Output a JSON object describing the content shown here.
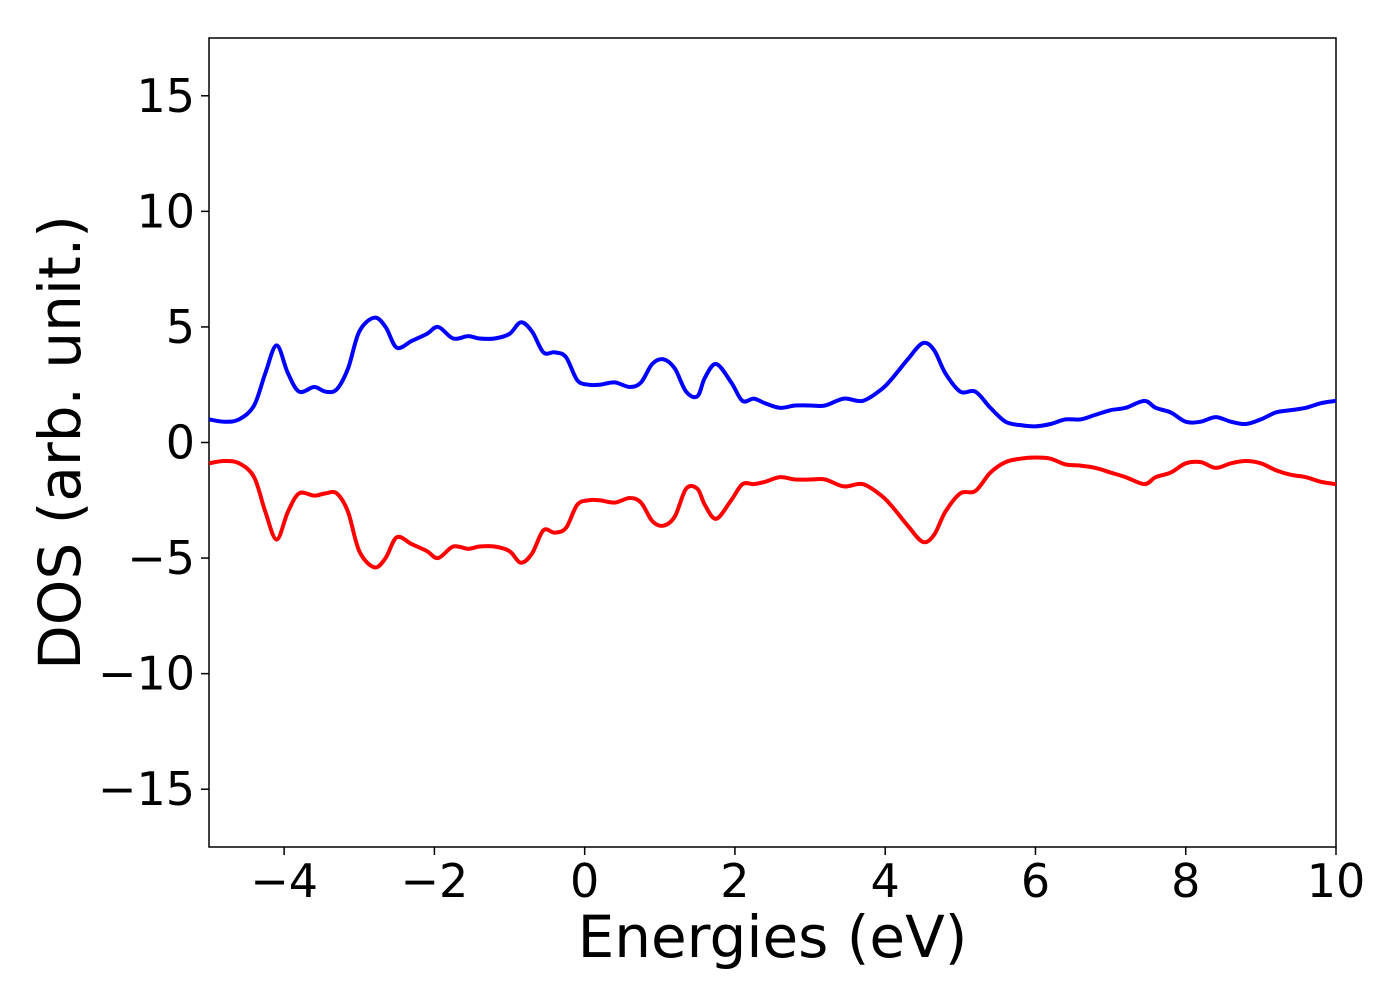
{
  "chart_data": {
    "type": "line",
    "title": "",
    "xlabel": "Energies (eV)",
    "ylabel": "DOS (arb. unit.)",
    "xlim": [
      -5,
      10
    ],
    "ylim": [
      -17.5,
      17.5
    ],
    "grid": false,
    "legend": "none",
    "x_ticks": [
      -4,
      -2,
      0,
      2,
      4,
      6,
      8,
      10
    ],
    "x_tick_labels": [
      "−4",
      "−2",
      "0",
      "2",
      "4",
      "6",
      "8",
      "10"
    ],
    "y_ticks": [
      -15,
      -10,
      -5,
      0,
      5,
      10,
      15
    ],
    "y_tick_labels": [
      "−15",
      "−10",
      "−5",
      "0",
      "5",
      "10",
      "15"
    ],
    "x": [
      -5.0,
      -4.8,
      -4.6,
      -4.4,
      -4.25,
      -4.1,
      -3.95,
      -3.8,
      -3.6,
      -3.45,
      -3.3,
      -3.15,
      -3.0,
      -2.8,
      -2.65,
      -2.5,
      -2.3,
      -2.1,
      -1.95,
      -1.75,
      -1.55,
      -1.4,
      -1.2,
      -1.0,
      -0.85,
      -0.7,
      -0.55,
      -0.4,
      -0.25,
      -0.1,
      0.05,
      0.2,
      0.4,
      0.6,
      0.75,
      0.9,
      1.05,
      1.2,
      1.35,
      1.5,
      1.6,
      1.75,
      1.95,
      2.1,
      2.25,
      2.4,
      2.6,
      2.8,
      3.0,
      3.2,
      3.45,
      3.7,
      3.95,
      4.1,
      4.3,
      4.5,
      4.65,
      4.8,
      5.0,
      5.2,
      5.4,
      5.6,
      5.8,
      6.0,
      6.2,
      6.4,
      6.6,
      6.8,
      7.0,
      7.2,
      7.45,
      7.6,
      7.8,
      8.0,
      8.2,
      8.4,
      8.6,
      8.8,
      9.0,
      9.2,
      9.4,
      9.6,
      9.8,
      10.0
    ],
    "series": [
      {
        "color": "#0000ff",
        "values": [
          1.0,
          0.9,
          1.0,
          1.6,
          3.0,
          4.2,
          3.0,
          2.2,
          2.4,
          2.2,
          2.3,
          3.2,
          4.8,
          5.4,
          5.0,
          4.1,
          4.4,
          4.7,
          5.0,
          4.5,
          4.6,
          4.5,
          4.5,
          4.7,
          5.2,
          4.8,
          3.9,
          3.9,
          3.7,
          2.7,
          2.5,
          2.5,
          2.6,
          2.4,
          2.6,
          3.4,
          3.6,
          3.2,
          2.2,
          2.0,
          2.8,
          3.4,
          2.6,
          1.8,
          1.9,
          1.7,
          1.5,
          1.6,
          1.6,
          1.6,
          1.9,
          1.8,
          2.3,
          2.8,
          3.6,
          4.3,
          4.0,
          3.0,
          2.2,
          2.2,
          1.5,
          0.9,
          0.75,
          0.7,
          0.8,
          1.0,
          1.0,
          1.2,
          1.4,
          1.5,
          1.8,
          1.5,
          1.3,
          0.9,
          0.9,
          1.1,
          0.9,
          0.8,
          1.0,
          1.3,
          1.4,
          1.5,
          1.7,
          1.8
        ]
      },
      {
        "color": "#ff0000",
        "values": [
          -0.9,
          -0.8,
          -0.9,
          -1.5,
          -3.0,
          -4.2,
          -3.0,
          -2.2,
          -2.3,
          -2.2,
          -2.2,
          -3.0,
          -4.7,
          -5.4,
          -5.0,
          -4.1,
          -4.4,
          -4.7,
          -5.0,
          -4.5,
          -4.6,
          -4.5,
          -4.5,
          -4.7,
          -5.2,
          -4.8,
          -3.8,
          -3.9,
          -3.7,
          -2.7,
          -2.5,
          -2.5,
          -2.6,
          -2.4,
          -2.6,
          -3.4,
          -3.6,
          -3.2,
          -2.0,
          -2.0,
          -2.7,
          -3.3,
          -2.5,
          -1.8,
          -1.8,
          -1.7,
          -1.5,
          -1.6,
          -1.6,
          -1.6,
          -1.9,
          -1.8,
          -2.3,
          -2.8,
          -3.6,
          -4.3,
          -4.0,
          -3.0,
          -2.2,
          -2.1,
          -1.3,
          -0.85,
          -0.7,
          -0.65,
          -0.7,
          -0.95,
          -1.0,
          -1.1,
          -1.3,
          -1.5,
          -1.8,
          -1.5,
          -1.3,
          -0.9,
          -0.85,
          -1.1,
          -0.9,
          -0.8,
          -0.9,
          -1.2,
          -1.4,
          -1.5,
          -1.7,
          -1.8
        ]
      }
    ]
  }
}
